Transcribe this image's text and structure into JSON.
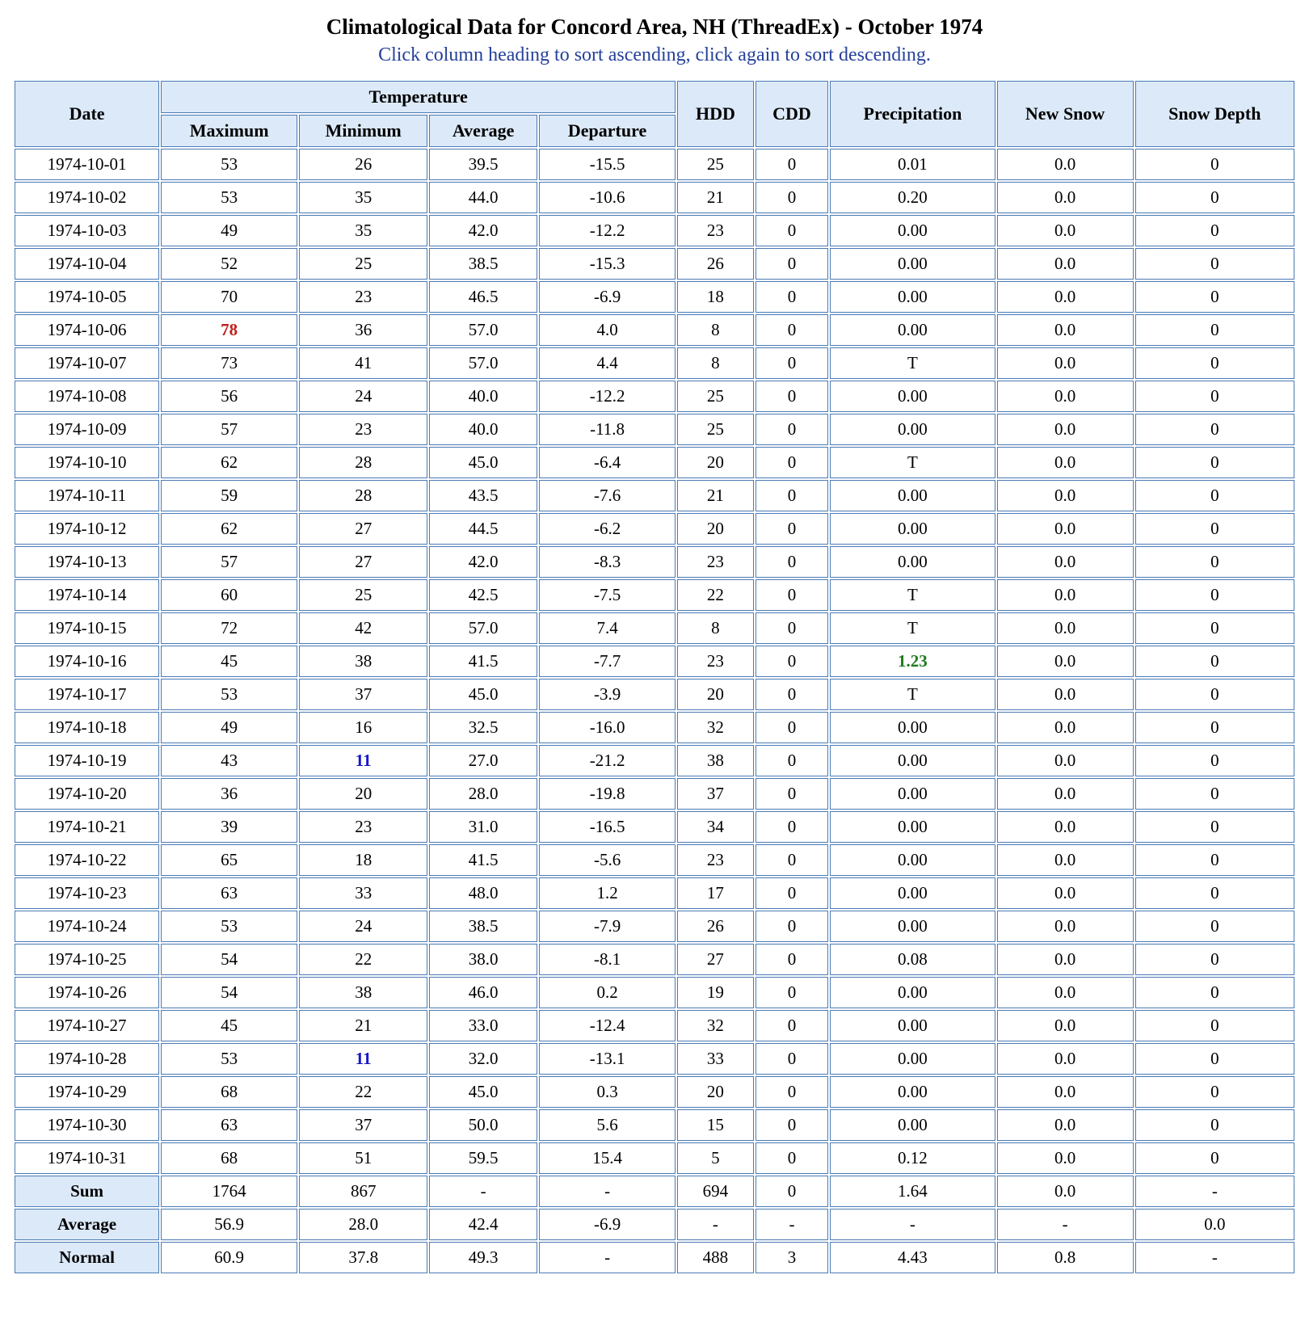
{
  "page": {
    "title": "Climatological Data for Concord Area, NH (ThreadEx) - October 1974",
    "subtitle": "Click column heading to sort ascending, click again to sort descending."
  },
  "colors": {
    "border": "#4a7ab5",
    "header_bg": "#dce9f8",
    "subtitle": "#25409a",
    "record_high": "#c02020",
    "record_low": "#1616c8",
    "precip_max": "#1e7a1e"
  },
  "table": {
    "header": {
      "date": "Date",
      "temperature_group": "Temperature",
      "maximum": "Maximum",
      "minimum": "Minimum",
      "average": "Average",
      "departure": "Departure",
      "hdd": "HDD",
      "cdd": "CDD",
      "precipitation": "Precipitation",
      "new_snow": "New Snow",
      "snow_depth": "Snow Depth"
    },
    "rows": [
      {
        "date": "1974-10-01",
        "cells": [
          "53",
          "26",
          "39.5",
          "-15.5",
          "25",
          "0",
          "0.01",
          "0.0",
          "0"
        ]
      },
      {
        "date": "1974-10-02",
        "cells": [
          "53",
          "35",
          "44.0",
          "-10.6",
          "21",
          "0",
          "0.20",
          "0.0",
          "0"
        ]
      },
      {
        "date": "1974-10-03",
        "cells": [
          "49",
          "35",
          "42.0",
          "-12.2",
          "23",
          "0",
          "0.00",
          "0.0",
          "0"
        ]
      },
      {
        "date": "1974-10-04",
        "cells": [
          "52",
          "25",
          "38.5",
          "-15.3",
          "26",
          "0",
          "0.00",
          "0.0",
          "0"
        ]
      },
      {
        "date": "1974-10-05",
        "cells": [
          "70",
          "23",
          "46.5",
          "-6.9",
          "18",
          "0",
          "0.00",
          "0.0",
          "0"
        ]
      },
      {
        "date": "1974-10-06",
        "cells": [
          {
            "v": "78",
            "c": "hi"
          },
          "36",
          "57.0",
          "4.0",
          "8",
          "0",
          "0.00",
          "0.0",
          "0"
        ]
      },
      {
        "date": "1974-10-07",
        "cells": [
          "73",
          "41",
          "57.0",
          "4.4",
          "8",
          "0",
          "T",
          "0.0",
          "0"
        ]
      },
      {
        "date": "1974-10-08",
        "cells": [
          "56",
          "24",
          "40.0",
          "-12.2",
          "25",
          "0",
          "0.00",
          "0.0",
          "0"
        ]
      },
      {
        "date": "1974-10-09",
        "cells": [
          "57",
          "23",
          "40.0",
          "-11.8",
          "25",
          "0",
          "0.00",
          "0.0",
          "0"
        ]
      },
      {
        "date": "1974-10-10",
        "cells": [
          "62",
          "28",
          "45.0",
          "-6.4",
          "20",
          "0",
          "T",
          "0.0",
          "0"
        ]
      },
      {
        "date": "1974-10-11",
        "cells": [
          "59",
          "28",
          "43.5",
          "-7.6",
          "21",
          "0",
          "0.00",
          "0.0",
          "0"
        ]
      },
      {
        "date": "1974-10-12",
        "cells": [
          "62",
          "27",
          "44.5",
          "-6.2",
          "20",
          "0",
          "0.00",
          "0.0",
          "0"
        ]
      },
      {
        "date": "1974-10-13",
        "cells": [
          "57",
          "27",
          "42.0",
          "-8.3",
          "23",
          "0",
          "0.00",
          "0.0",
          "0"
        ]
      },
      {
        "date": "1974-10-14",
        "cells": [
          "60",
          "25",
          "42.5",
          "-7.5",
          "22",
          "0",
          "T",
          "0.0",
          "0"
        ]
      },
      {
        "date": "1974-10-15",
        "cells": [
          "72",
          "42",
          "57.0",
          "7.4",
          "8",
          "0",
          "T",
          "0.0",
          "0"
        ]
      },
      {
        "date": "1974-10-16",
        "cells": [
          "45",
          "38",
          "41.5",
          "-7.7",
          "23",
          "0",
          {
            "v": "1.23",
            "c": "wet"
          },
          "0.0",
          "0"
        ]
      },
      {
        "date": "1974-10-17",
        "cells": [
          "53",
          "37",
          "45.0",
          "-3.9",
          "20",
          "0",
          "T",
          "0.0",
          "0"
        ]
      },
      {
        "date": "1974-10-18",
        "cells": [
          "49",
          "16",
          "32.5",
          "-16.0",
          "32",
          "0",
          "0.00",
          "0.0",
          "0"
        ]
      },
      {
        "date": "1974-10-19",
        "cells": [
          "43",
          {
            "v": "11",
            "c": "lo"
          },
          "27.0",
          "-21.2",
          "38",
          "0",
          "0.00",
          "0.0",
          "0"
        ]
      },
      {
        "date": "1974-10-20",
        "cells": [
          "36",
          "20",
          "28.0",
          "-19.8",
          "37",
          "0",
          "0.00",
          "0.0",
          "0"
        ]
      },
      {
        "date": "1974-10-21",
        "cells": [
          "39",
          "23",
          "31.0",
          "-16.5",
          "34",
          "0",
          "0.00",
          "0.0",
          "0"
        ]
      },
      {
        "date": "1974-10-22",
        "cells": [
          "65",
          "18",
          "41.5",
          "-5.6",
          "23",
          "0",
          "0.00",
          "0.0",
          "0"
        ]
      },
      {
        "date": "1974-10-23",
        "cells": [
          "63",
          "33",
          "48.0",
          "1.2",
          "17",
          "0",
          "0.00",
          "0.0",
          "0"
        ]
      },
      {
        "date": "1974-10-24",
        "cells": [
          "53",
          "24",
          "38.5",
          "-7.9",
          "26",
          "0",
          "0.00",
          "0.0",
          "0"
        ]
      },
      {
        "date": "1974-10-25",
        "cells": [
          "54",
          "22",
          "38.0",
          "-8.1",
          "27",
          "0",
          "0.08",
          "0.0",
          "0"
        ]
      },
      {
        "date": "1974-10-26",
        "cells": [
          "54",
          "38",
          "46.0",
          "0.2",
          "19",
          "0",
          "0.00",
          "0.0",
          "0"
        ]
      },
      {
        "date": "1974-10-27",
        "cells": [
          "45",
          "21",
          "33.0",
          "-12.4",
          "32",
          "0",
          "0.00",
          "0.0",
          "0"
        ]
      },
      {
        "date": "1974-10-28",
        "cells": [
          "53",
          {
            "v": "11",
            "c": "lo"
          },
          "32.0",
          "-13.1",
          "33",
          "0",
          "0.00",
          "0.0",
          "0"
        ]
      },
      {
        "date": "1974-10-29",
        "cells": [
          "68",
          "22",
          "45.0",
          "0.3",
          "20",
          "0",
          "0.00",
          "0.0",
          "0"
        ]
      },
      {
        "date": "1974-10-30",
        "cells": [
          "63",
          "37",
          "50.0",
          "5.6",
          "15",
          "0",
          "0.00",
          "0.0",
          "0"
        ]
      },
      {
        "date": "1974-10-31",
        "cells": [
          "68",
          "51",
          "59.5",
          "15.4",
          "5",
          "0",
          "0.12",
          "0.0",
          "0"
        ]
      }
    ],
    "summary_rows": [
      {
        "label": "Sum",
        "cells": [
          "1764",
          "867",
          "-",
          "-",
          "694",
          "0",
          "1.64",
          "0.0",
          "-"
        ]
      },
      {
        "label": "Average",
        "cells": [
          "56.9",
          "28.0",
          "42.4",
          "-6.9",
          "-",
          "-",
          "-",
          "-",
          "0.0"
        ]
      },
      {
        "label": "Normal",
        "cells": [
          "60.9",
          "37.8",
          "49.3",
          "-",
          "488",
          "3",
          "4.43",
          "0.8",
          "-"
        ]
      }
    ]
  }
}
